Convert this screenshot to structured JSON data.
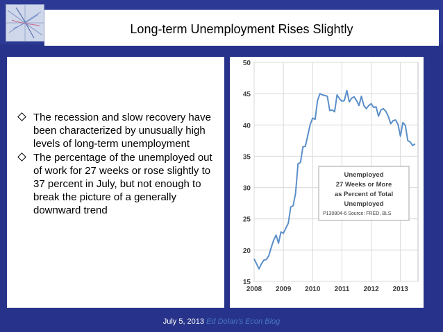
{
  "slide": {
    "title": "Long-term Unemployment Rises Slightly",
    "bullets": [
      "The recession and slow recovery have been characterized by unusually high levels of long-term unemployment",
      "The percentage of the unemployed out of work for 27 weeks or rose slightly to 37 percent in July, but not enough to break the picture of a generally downward trend"
    ],
    "footer": {
      "date": "July 5, 2013",
      "blog": "Ed Dolan’s Econ Blog"
    }
  },
  "chart_data": {
    "type": "line",
    "xlabel": "",
    "ylabel": "",
    "x_ticks": [
      "2008",
      "2009",
      "2010",
      "2011",
      "2012",
      "2013"
    ],
    "y_ticks": [
      15,
      20,
      25,
      30,
      35,
      40,
      45,
      50
    ],
    "xlim": [
      2008.0,
      2013.6
    ],
    "ylim": [
      15,
      50
    ],
    "grid": true,
    "legend": {
      "placement": "center-right",
      "lines": [
        "Unemployed",
        "27 Weeks or More",
        "as Percent of Total",
        "Unemployed"
      ],
      "source": "P130804-6 Source: FRED, BLS"
    },
    "colors": {
      "line": "#5b8fc9",
      "grid": "#d9d9d9"
    },
    "series": [
      {
        "x": [
          2008.0,
          2008.083,
          2008.167,
          2008.25,
          2008.333,
          2008.417,
          2008.5,
          2008.583,
          2008.667,
          2008.75,
          2008.833,
          2008.917,
          2009.0,
          2009.083,
          2009.167,
          2009.25,
          2009.333,
          2009.417,
          2009.5,
          2009.583,
          2009.667,
          2009.75,
          2009.833,
          2009.917,
          2010.0,
          2010.083,
          2010.167,
          2010.25,
          2010.333,
          2010.417,
          2010.5,
          2010.583,
          2010.667,
          2010.75,
          2010.833,
          2010.917,
          2011.0,
          2011.083,
          2011.167,
          2011.25,
          2011.333,
          2011.417,
          2011.5,
          2011.583,
          2011.667,
          2011.75,
          2011.833,
          2011.917,
          2012.0,
          2012.083,
          2012.167,
          2012.25,
          2012.333,
          2012.417,
          2012.5,
          2012.583,
          2012.667,
          2012.75,
          2012.833,
          2012.917,
          2013.0,
          2013.083,
          2013.167,
          2013.25,
          2013.333,
          2013.417,
          2013.5
        ],
        "values": [
          18.6,
          17.8,
          17.0,
          17.8,
          18.4,
          18.5,
          19.1,
          20.4,
          21.6,
          22.4,
          21.1,
          22.9,
          22.7,
          23.5,
          24.3,
          26.9,
          27.1,
          29.1,
          33.8,
          34.0,
          36.5,
          36.6,
          38.3,
          40.1,
          41.1,
          40.9,
          43.9,
          45.0,
          44.8,
          44.7,
          44.6,
          42.3,
          42.4,
          42.1,
          44.8,
          44.2,
          43.8,
          43.9,
          45.5,
          43.7,
          44.3,
          44.5,
          43.9,
          43.1,
          44.6,
          43.1,
          42.6,
          43.1,
          43.4,
          42.8,
          42.9,
          41.4,
          42.4,
          42.6,
          42.2,
          41.4,
          40.2,
          40.7,
          40.8,
          40.1,
          38.2,
          40.4,
          39.9,
          37.5,
          37.3,
          36.7,
          37.0
        ]
      }
    ]
  }
}
